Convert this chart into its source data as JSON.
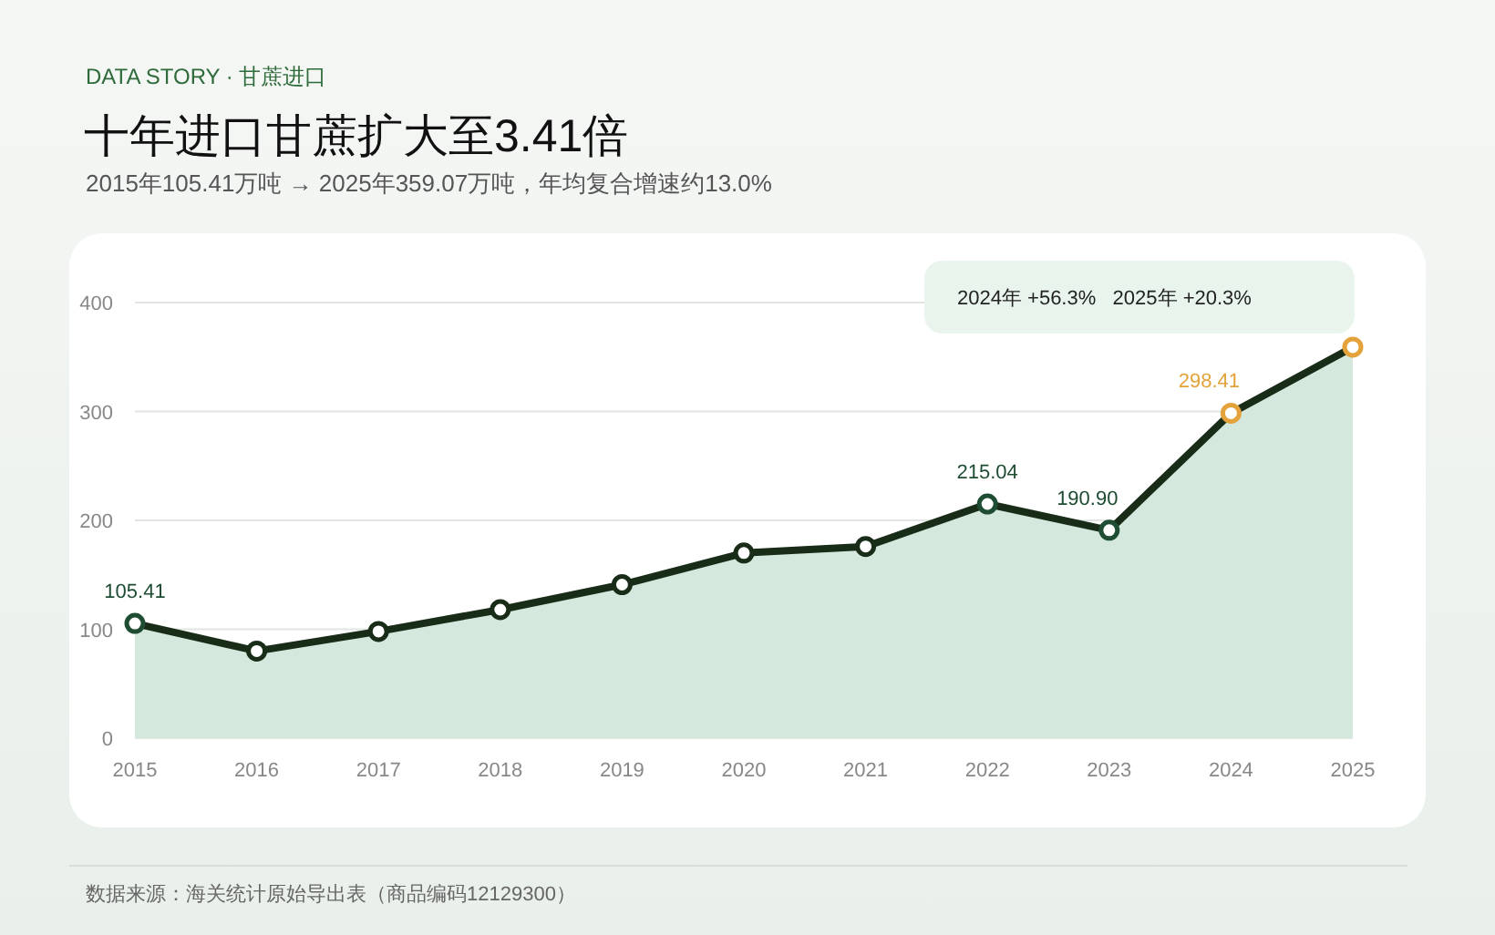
{
  "chart_data": {
    "type": "area",
    "title": "十年进口甘蔗扩大至3.41倍",
    "subtitle": "2015年105.41万吨 → 2025年359.07万吨，年均复合增速约13.0%",
    "annotations": [
      "DATA STORY · 甘蔗进口",
      "2024年 +56.3%   2025年 +20.3%",
      "数据来源：海关统计原始导出表（商品编码12129300）"
    ],
    "categories": [
      "2015",
      "2016",
      "2017",
      "2018",
      "2019",
      "2020",
      "2021",
      "2022",
      "2023",
      "2024",
      "2025"
    ],
    "series": [
      {
        "color": "#182c18",
        "colors": [
          "#1f4d33",
          "#182c18",
          "#182c18",
          "#182c18",
          "#182c18",
          "#182c18",
          "#182c18",
          "#1f4d33",
          "#1f4d33",
          "#e3a23a",
          "#e3a23a"
        ],
        "values": [
          105.41,
          80,
          98,
          118,
          141,
          170,
          176,
          215.04,
          190.9,
          298.41,
          359.07
        ],
        "value_labels": [
          "105.41",
          null,
          null,
          null,
          null,
          null,
          null,
          "215.04",
          "190.90",
          "298.41",
          null
        ]
      }
    ],
    "ylim": [
      0,
      400
    ],
    "yticks": [
      0,
      100,
      200,
      300,
      400
    ],
    "grid": "y",
    "marker": "circle",
    "line_style": "solid"
  }
}
